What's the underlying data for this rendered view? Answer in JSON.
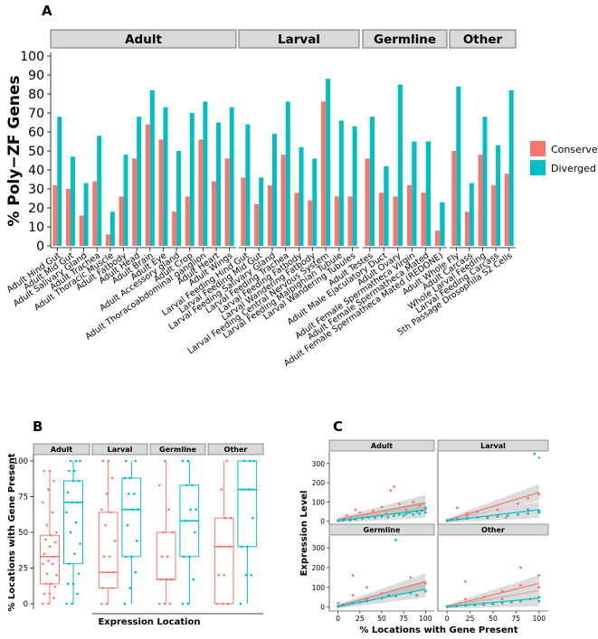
{
  "figure": {
    "panel_letters": [
      "A",
      "B",
      "C"
    ]
  },
  "chart_data": [
    {
      "panel": "A",
      "type": "bar",
      "ylabel": "% Poly−ZF Genes",
      "ylim": [
        0,
        100
      ],
      "yticks": [
        0,
        10,
        20,
        30,
        40,
        50,
        60,
        70,
        80,
        90,
        100
      ],
      "legend": {
        "placement": "right",
        "entries": [
          {
            "name": "Conserved",
            "color": "#F8766D"
          },
          {
            "name": "Diverged",
            "color": "#00BFC4"
          }
        ]
      },
      "facets": [
        {
          "label": "Adult",
          "categories": [
            "Adult Hind Gut",
            "Adult Mid Gut",
            "Adult Salivary Gland",
            "Adult Trachea",
            "Adult Thoracic Muscle",
            "Adult Fatbody",
            "Adult Head",
            "Adult Brain",
            "Adult Eye",
            "Adult Accessory gland",
            "Adult Crop",
            "Adult Thoracoabdominal ganglion",
            "Adult Heart",
            "Adult Wings"
          ],
          "conserved": [
            32,
            30,
            16,
            34,
            6,
            26,
            46,
            64,
            56,
            18,
            26,
            56,
            34,
            46
          ],
          "diverged": [
            68,
            47,
            33,
            58,
            18,
            48,
            68,
            82,
            73,
            50,
            70,
            76,
            65,
            73
          ]
        },
        {
          "label": "Larval",
          "categories": [
            "Larval Feeding Hind Gut",
            "Larval Feeding Mid Gut",
            "Larval Feeding Salivary Gland",
            "Larval Feeding Trachea",
            "Larval Feeding Fatbody",
            "Larval Wandering Fatbody",
            "Larval Feeding Central Nervous System",
            "Larval Feeding Malpighian Tubule",
            "Larval Wandering Tubules"
          ],
          "conserved": [
            36,
            22,
            32,
            48,
            28,
            24,
            76,
            26,
            26
          ],
          "diverged": [
            64,
            36,
            59,
            76,
            52,
            46,
            88,
            66,
            63
          ]
        },
        {
          "label": "Germline",
          "categories": [
            "Adult Testes",
            "Adult Male Ejaculatory Duct",
            "Adult Ovary",
            "Adult Female Spermatheca Virgin",
            "Adult Female Spermatheca Mated",
            "Adult Female Spermatheca Mated (REDONE)"
          ],
          "conserved": [
            46,
            28,
            26,
            32,
            28,
            8
          ],
          "diverged": [
            68,
            42,
            85,
            55,
            55,
            23
          ]
        },
        {
          "label": "Other",
          "categories": [
            "Adult Whole Fly",
            "Adult Carcass",
            "Whole Larval Feeding",
            "Larval Feeding Carcass",
            "5th Passage Drosophila S2 Cells"
          ],
          "conserved": [
            50,
            18,
            48,
            32,
            38
          ],
          "diverged": [
            84,
            33,
            68,
            53,
            82
          ]
        }
      ]
    },
    {
      "panel": "B",
      "type": "boxplot",
      "ylabel": "% Locations with Gene Present",
      "xlabel": "Expression Location",
      "ylim": [
        0,
        100
      ],
      "yticks": [
        0,
        25,
        50,
        75,
        100
      ],
      "facets": [
        {
          "label": "Adult",
          "conserved": {
            "min": 0,
            "q1": 14,
            "median": 33,
            "q3": 48,
            "max": 93,
            "points": [
              0,
              0,
              4,
              7,
              7,
              12,
              14,
              14,
              20,
              21,
              28,
              28,
              30,
              33,
              35,
              40,
              43,
              45,
              48,
              50,
              55,
              64,
              71,
              80,
              86,
              93,
              93
            ]
          },
          "diverged": {
            "min": 0,
            "q1": 28,
            "median": 71,
            "q3": 86,
            "max": 100,
            "points": [
              0,
              0,
              7,
              14,
              14,
              21,
              28,
              35,
              42,
              50,
              57,
              64,
              71,
              71,
              78,
              86,
              86,
              93,
              93,
              100,
              100,
              100
            ]
          }
        },
        {
          "label": "Larval",
          "conserved": {
            "min": 0,
            "q1": 11,
            "median": 22,
            "q3": 64,
            "max": 100,
            "points": [
              0,
              0,
              11,
              11,
              22,
              22,
              33,
              33,
              44,
              55,
              64,
              66,
              77,
              88,
              100,
              100
            ]
          },
          "diverged": {
            "min": 0,
            "q1": 33,
            "median": 66,
            "q3": 88,
            "max": 100,
            "points": [
              0,
              11,
              22,
              33,
              33,
              44,
              55,
              66,
              66,
              77,
              77,
              88,
              88,
              100,
              100
            ]
          }
        },
        {
          "label": "Germline",
          "conserved": {
            "min": 0,
            "q1": 17,
            "median": 17,
            "q3": 50,
            "max": 100,
            "points": [
              0,
              0,
              0,
              17,
              17,
              17,
              33,
              33,
              50,
              50,
              66,
              83,
              100
            ]
          },
          "diverged": {
            "min": 0,
            "q1": 33,
            "median": 58,
            "q3": 83,
            "max": 100,
            "points": [
              0,
              0,
              17,
              33,
              33,
              50,
              58,
              66,
              66,
              83,
              83,
              100,
              100
            ]
          }
        },
        {
          "label": "Other",
          "conserved": {
            "min": 0,
            "q1": 0,
            "median": 40,
            "q3": 60,
            "max": 100,
            "points": [
              0,
              0,
              0,
              20,
              20,
              40,
              40,
              60,
              60,
              80,
              100
            ]
          },
          "diverged": {
            "min": 0,
            "q1": 40,
            "median": 80,
            "q3": 100,
            "max": 100,
            "points": [
              0,
              20,
              20,
              40,
              40,
              60,
              80,
              80,
              100,
              100,
              100
            ]
          }
        }
      ]
    },
    {
      "panel": "C",
      "type": "scatter",
      "ylabel": "Expression Level",
      "xlabel": "% Locations with Gene Present",
      "xlim": [
        -10,
        110
      ],
      "ylim": [
        -20,
        360
      ],
      "xticks": [
        0,
        25,
        50,
        75,
        100
      ],
      "yticks": [
        0,
        100,
        200,
        300
      ],
      "facets": [
        {
          "label": "Adult",
          "conserved": [
            [
              0,
              5
            ],
            [
              7,
              12
            ],
            [
              10,
              30
            ],
            [
              14,
              20
            ],
            [
              20,
              60
            ],
            [
              25,
              45
            ],
            [
              28,
              20
            ],
            [
              33,
              35
            ],
            [
              40,
              55
            ],
            [
              45,
              30
            ],
            [
              50,
              75
            ],
            [
              55,
              40
            ],
            [
              60,
              160
            ],
            [
              64,
              180
            ],
            [
              70,
              90
            ],
            [
              78,
              60
            ],
            [
              86,
              100
            ],
            [
              93,
              80
            ],
            [
              100,
              60
            ]
          ],
          "diverged": [
            [
              0,
              2
            ],
            [
              5,
              5
            ],
            [
              7,
              8
            ],
            [
              14,
              6
            ],
            [
              20,
              10
            ],
            [
              28,
              15
            ],
            [
              35,
              20
            ],
            [
              42,
              18
            ],
            [
              50,
              25
            ],
            [
              57,
              22
            ],
            [
              64,
              28
            ],
            [
              70,
              35
            ],
            [
              75,
              30
            ],
            [
              78,
              40
            ],
            [
              82,
              45
            ],
            [
              86,
              35
            ],
            [
              90,
              50
            ],
            [
              93,
              40
            ],
            [
              96,
              55
            ],
            [
              100,
              45
            ],
            [
              100,
              70
            ]
          ],
          "trend_conserved": [
            [
              0,
              10
            ],
            [
              100,
              95
            ]
          ],
          "trend_diverged": [
            [
              0,
              2
            ],
            [
              100,
              60
            ]
          ]
        },
        {
          "label": "Larval",
          "conserved": [
            [
              0,
              5
            ],
            [
              11,
              15
            ],
            [
              11,
              70
            ],
            [
              22,
              30
            ],
            [
              22,
              40
            ],
            [
              33,
              50
            ],
            [
              44,
              25
            ],
            [
              55,
              60
            ],
            [
              64,
              20
            ],
            [
              77,
              90
            ],
            [
              88,
              120
            ],
            [
              100,
              330
            ],
            [
              100,
              140
            ]
          ],
          "diverged": [
            [
              0,
              2
            ],
            [
              5,
              8
            ],
            [
              11,
              10
            ],
            [
              22,
              15
            ],
            [
              33,
              20
            ],
            [
              44,
              18
            ],
            [
              55,
              25
            ],
            [
              66,
              30
            ],
            [
              77,
              35
            ],
            [
              88,
              40
            ],
            [
              88,
              60
            ],
            [
              95,
              350
            ],
            [
              100,
              45
            ],
            [
              100,
              55
            ]
          ],
          "trend_conserved": [
            [
              0,
              5
            ],
            [
              100,
              150
            ]
          ],
          "trend_diverged": [
            [
              0,
              2
            ],
            [
              100,
              60
            ]
          ]
        },
        {
          "label": "Germline",
          "conserved": [
            [
              0,
              5
            ],
            [
              0,
              20
            ],
            [
              17,
              160
            ],
            [
              17,
              60
            ],
            [
              33,
              40
            ],
            [
              33,
              100
            ],
            [
              50,
              70
            ],
            [
              66,
              60
            ],
            [
              83,
              150
            ],
            [
              100,
              120
            ]
          ],
          "diverged": [
            [
              0,
              2
            ],
            [
              5,
              10
            ],
            [
              17,
              20
            ],
            [
              25,
              25
            ],
            [
              33,
              30
            ],
            [
              50,
              45
            ],
            [
              58,
              60
            ],
            [
              66,
              340
            ],
            [
              66,
              55
            ],
            [
              83,
              70
            ],
            [
              90,
              60
            ],
            [
              100,
              80
            ]
          ],
          "trend_conserved": [
            [
              0,
              5
            ],
            [
              100,
              130
            ]
          ],
          "trend_diverged": [
            [
              0,
              2
            ],
            [
              100,
              90
            ]
          ]
        },
        {
          "label": "Other",
          "conserved": [
            [
              0,
              3
            ],
            [
              20,
              40
            ],
            [
              20,
              130
            ],
            [
              40,
              50
            ],
            [
              40,
              20
            ],
            [
              60,
              80
            ],
            [
              60,
              40
            ],
            [
              80,
              200
            ],
            [
              80,
              110
            ],
            [
              100,
              160
            ],
            [
              100,
              100
            ]
          ],
          "diverged": [
            [
              0,
              2
            ],
            [
              10,
              5
            ],
            [
              20,
              8
            ],
            [
              30,
              10
            ],
            [
              40,
              12
            ],
            [
              50,
              15
            ],
            [
              60,
              20
            ],
            [
              70,
              25
            ],
            [
              80,
              30
            ],
            [
              90,
              40
            ],
            [
              100,
              50
            ],
            [
              100,
              30
            ]
          ],
          "trend_conserved": [
            [
              0,
              3
            ],
            [
              100,
              120
            ]
          ],
          "trend_diverged": [
            [
              0,
              1
            ],
            [
              100,
              45
            ]
          ]
        }
      ]
    }
  ]
}
